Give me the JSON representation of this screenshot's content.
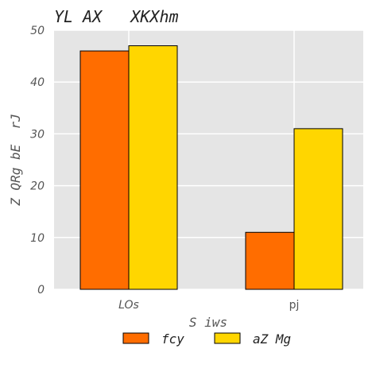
{
  "chart_data": {
    "type": "bar",
    "title": "YL AX   XKXhm",
    "xlabel": "S iws",
    "ylabel": "Z QRg bE  rJ",
    "categories": [
      "LOs",
      "pj"
    ],
    "series": [
      {
        "name": "fcy",
        "values": [
          46,
          11
        ],
        "color": "#ff6d00"
      },
      {
        "name": "aZ Mg",
        "values": [
          47,
          31
        ],
        "color": "#ffd600"
      }
    ],
    "ylim": [
      0,
      50
    ],
    "yticks": [
      0,
      10,
      20,
      30,
      40,
      50
    ],
    "grid": true,
    "legend_position": "bottom-center",
    "background_color": "#e5e5e5"
  }
}
